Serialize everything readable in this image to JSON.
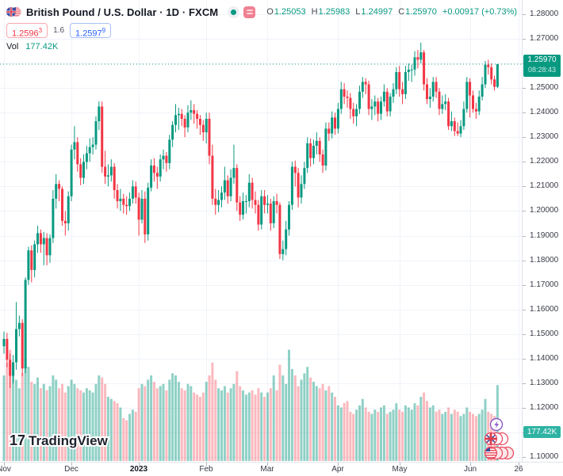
{
  "header": {
    "symbol_title": "British Pound / U.S. Dollar",
    "interval": "1D",
    "exchange": "FXCM",
    "title_full": "British Pound / U.S. Dollar · 1D · FXCM",
    "ohlc": {
      "o_label": "O",
      "o": "1.25053",
      "h_label": "H",
      "h": "1.25983",
      "l_label": "L",
      "l": "1.24997",
      "c_label": "C",
      "c": "1.25970",
      "change": "+0.00917 (+0.73%)"
    },
    "bid_main": "1.2596",
    "bid_sup": "3",
    "spread": "1.6",
    "ask_main": "1.2597",
    "ask_sup": "9",
    "vol_label": "Vol",
    "vol_value": "177.42K"
  },
  "price_label": {
    "price": "1.25970",
    "countdown": "08:28:43"
  },
  "vol_axis_label": "177.42K",
  "watermark": {
    "mark": "17",
    "logo_text": "TradingView"
  },
  "colors": {
    "up": "#089981",
    "down": "#f23645",
    "vol_up": "rgba(8,153,129,0.45)",
    "vol_down": "rgba(242,54,69,0.35)",
    "grid": "#f0f3fa",
    "axis_text": "#363a45",
    "price_label_bg": "#089981",
    "vol_label_bg": "#2eb3a3",
    "bid": "#f23645",
    "ask": "#2962ff"
  },
  "chart_data": {
    "type": "candlestick",
    "title": "British Pound / U.S. Dollar",
    "interval": "1D",
    "source": "FXCM",
    "current_bar": {
      "open": 1.25053,
      "high": 1.25983,
      "low": 1.24997,
      "close": 1.2597,
      "change": "+0.00917 (+0.73%)"
    },
    "last_price": 1.2597,
    "price_axis": {
      "min": 1.1,
      "max": 1.28,
      "tick_step": 0.01,
      "tick_labels": [
        "1.28000",
        "1.27000",
        "1.26000",
        "1.25000",
        "1.24000",
        "1.23000",
        "1.22000",
        "1.21000",
        "1.20000",
        "1.19000",
        "1.18000",
        "1.17000",
        "1.16000",
        "1.15000",
        "1.14000",
        "1.13000",
        "1.12000",
        "1.11000",
        "1.10000"
      ]
    },
    "time_axis": {
      "ticks": [
        {
          "label": "Nov",
          "index": 0,
          "bold": false
        },
        {
          "label": "Dec",
          "index": 22,
          "bold": false
        },
        {
          "label": "2023",
          "index": 44,
          "bold": true
        },
        {
          "label": "Feb",
          "index": 66,
          "bold": false
        },
        {
          "label": "Mar",
          "index": 86,
          "bold": false
        },
        {
          "label": "Apr",
          "index": 109,
          "bold": false
        },
        {
          "label": "May",
          "index": 129,
          "bold": false
        },
        {
          "label": "Jun",
          "index": 152,
          "bold": false
        },
        {
          "label": "26",
          "index": 168,
          "bold": false
        }
      ]
    },
    "volume": {
      "current_label": "177.42K",
      "values": [
        200,
        230,
        260,
        225,
        190,
        170,
        205,
        240,
        220,
        185,
        180,
        195,
        170,
        180,
        165,
        175,
        200,
        190,
        170,
        180,
        160,
        175,
        190,
        180,
        170,
        165,
        160,
        170,
        165,
        160,
        180,
        200,
        195,
        180,
        150,
        145,
        140,
        135,
        125,
        100,
        95,
        110,
        120,
        115,
        170,
        180,
        175,
        190,
        200,
        185,
        170,
        175,
        180,
        165,
        190,
        205,
        200,
        185,
        170,
        165,
        180,
        175,
        160,
        155,
        150,
        160,
        185,
        200,
        230,
        190,
        170,
        165,
        175,
        160,
        170,
        180,
        210,
        175,
        165,
        155,
        160,
        165,
        155,
        170,
        160,
        150,
        160,
        170,
        200,
        165,
        225,
        200,
        180,
        260,
        215,
        200,
        175,
        190,
        205,
        220,
        195,
        185,
        175,
        170,
        180,
        165,
        175,
        160,
        150,
        130,
        125,
        135,
        140,
        115,
        110,
        120,
        130,
        145,
        125,
        115,
        110,
        120,
        115,
        125,
        130,
        110,
        115,
        120,
        135,
        120,
        115,
        130,
        125,
        120,
        135,
        130,
        150,
        160,
        140,
        125,
        130,
        115,
        120,
        110,
        115,
        125,
        110,
        120,
        115,
        105,
        110,
        125,
        115,
        110,
        105,
        110,
        120,
        145,
        115,
        110,
        105,
        177.42
      ]
    },
    "candles": [
      [
        1.145,
        1.151,
        1.142,
        1.148
      ],
      [
        1.148,
        1.1505,
        1.1365,
        1.1395
      ],
      [
        1.1395,
        1.142,
        1.128,
        1.133
      ],
      [
        1.133,
        1.1415,
        1.13,
        1.1385
      ],
      [
        1.1385,
        1.163,
        1.1355,
        1.152
      ],
      [
        1.152,
        1.1575,
        1.149,
        1.1545
      ],
      [
        1.1545,
        1.156,
        1.133,
        1.136
      ],
      [
        1.136,
        1.173,
        1.134,
        1.172
      ],
      [
        1.172,
        1.1855,
        1.17,
        1.184
      ],
      [
        1.184,
        1.186,
        1.171,
        1.176
      ],
      [
        1.176,
        1.188,
        1.173,
        1.1865
      ],
      [
        1.1865,
        1.194,
        1.183,
        1.191
      ],
      [
        1.191,
        1.1925,
        1.183,
        1.1865
      ],
      [
        1.1865,
        1.1915,
        1.178,
        1.189
      ],
      [
        1.189,
        1.191,
        1.178,
        1.182
      ],
      [
        1.182,
        1.1905,
        1.179,
        1.189
      ],
      [
        1.189,
        1.2085,
        1.187,
        1.205
      ],
      [
        1.205,
        1.215,
        1.201,
        1.211
      ],
      [
        1.211,
        1.2125,
        1.204,
        1.209
      ],
      [
        1.209,
        1.21,
        1.194,
        1.196
      ],
      [
        1.196,
        1.2,
        1.19,
        1.195
      ],
      [
        1.195,
        1.208,
        1.192,
        1.206
      ],
      [
        1.206,
        1.227,
        1.204,
        1.225
      ],
      [
        1.225,
        1.2345,
        1.221,
        1.228
      ],
      [
        1.228,
        1.23,
        1.216,
        1.219
      ],
      [
        1.219,
        1.2215,
        1.2105,
        1.2135
      ],
      [
        1.2135,
        1.223,
        1.211,
        1.22
      ],
      [
        1.22,
        1.2265,
        1.217,
        1.2235
      ],
      [
        1.2235,
        1.2295,
        1.22,
        1.226
      ],
      [
        1.226,
        1.23,
        1.223,
        1.227
      ],
      [
        1.227,
        1.2385,
        1.225,
        1.2365
      ],
      [
        1.2365,
        1.2446,
        1.233,
        1.2425
      ],
      [
        1.2425,
        1.2445,
        1.2155,
        1.218
      ],
      [
        1.218,
        1.2245,
        1.211,
        1.214
      ],
      [
        1.214,
        1.219,
        1.21,
        1.2145
      ],
      [
        1.2145,
        1.221,
        1.212,
        1.218
      ],
      [
        1.218,
        1.2195,
        1.205,
        1.2085
      ],
      [
        1.2085,
        1.211,
        1.201,
        1.204
      ],
      [
        1.204,
        1.209,
        1.2,
        1.205
      ],
      [
        1.205,
        1.207,
        1.199,
        1.2025
      ],
      [
        1.2025,
        1.206,
        1.1985,
        1.202
      ],
      [
        1.202,
        1.2075,
        1.2,
        1.205
      ],
      [
        1.205,
        1.2125,
        1.203,
        1.21
      ],
      [
        1.21,
        1.212,
        1.203,
        1.2055
      ],
      [
        1.2055,
        1.2075,
        1.19,
        1.1965
      ],
      [
        1.1965,
        1.2085,
        1.195,
        1.205
      ],
      [
        1.205,
        1.208,
        1.187,
        1.1905
      ],
      [
        1.1905,
        1.2115,
        1.188,
        1.2095
      ],
      [
        1.2095,
        1.221,
        1.208,
        1.2185
      ],
      [
        1.2185,
        1.2215,
        1.212,
        1.2155
      ],
      [
        1.2155,
        1.218,
        1.209,
        1.214
      ],
      [
        1.214,
        1.223,
        1.212,
        1.221
      ],
      [
        1.221,
        1.225,
        1.217,
        1.2225
      ],
      [
        1.2225,
        1.224,
        1.216,
        1.2195
      ],
      [
        1.2195,
        1.231,
        1.217,
        1.229
      ],
      [
        1.229,
        1.2365,
        1.226,
        1.235
      ],
      [
        1.235,
        1.2435,
        1.232,
        1.239
      ],
      [
        1.239,
        1.242,
        1.233,
        1.2395
      ],
      [
        1.2395,
        1.2415,
        1.2345,
        1.2375
      ],
      [
        1.2375,
        1.239,
        1.23,
        1.234
      ],
      [
        1.234,
        1.243,
        1.232,
        1.24
      ],
      [
        1.24,
        1.245,
        1.237,
        1.241
      ],
      [
        1.241,
        1.2435,
        1.2355,
        1.2395
      ],
      [
        1.2395,
        1.241,
        1.2335,
        1.2375
      ],
      [
        1.2375,
        1.239,
        1.231,
        1.235
      ],
      [
        1.235,
        1.237,
        1.2285,
        1.232
      ],
      [
        1.232,
        1.24,
        1.2275,
        1.2375
      ],
      [
        1.2375,
        1.24,
        1.219,
        1.2225
      ],
      [
        1.2225,
        1.227,
        1.2025,
        1.205
      ],
      [
        1.205,
        1.209,
        1.1985,
        1.2025
      ],
      [
        1.2025,
        1.2085,
        1.1995,
        1.2045
      ],
      [
        1.2045,
        1.21,
        1.2015,
        1.2075
      ],
      [
        1.2075,
        1.218,
        1.2045,
        1.2125
      ],
      [
        1.2125,
        1.2145,
        1.203,
        1.206
      ],
      [
        1.206,
        1.217,
        1.204,
        1.2135
      ],
      [
        1.2135,
        1.227,
        1.211,
        1.2175
      ],
      [
        1.2175,
        1.219,
        1.2,
        1.2035
      ],
      [
        1.2035,
        1.206,
        1.196,
        1.1985
      ],
      [
        1.1985,
        1.2075,
        1.1965,
        1.204
      ],
      [
        1.204,
        1.2065,
        1.199,
        1.204
      ],
      [
        1.204,
        1.215,
        1.2015,
        1.2115
      ],
      [
        1.2115,
        1.2135,
        1.201,
        1.2045
      ],
      [
        1.2045,
        1.208,
        1.199,
        1.2025
      ],
      [
        1.2025,
        1.2045,
        1.192,
        1.1945
      ],
      [
        1.1945,
        1.2085,
        1.1925,
        1.206
      ],
      [
        1.206,
        1.2085,
        1.199,
        1.2025
      ],
      [
        1.2025,
        1.2065,
        1.199,
        1.203
      ],
      [
        1.203,
        1.205,
        1.192,
        1.195
      ],
      [
        1.195,
        1.206,
        1.193,
        1.204
      ],
      [
        1.204,
        1.207,
        1.199,
        1.2025
      ],
      [
        1.2025,
        1.2035,
        1.1805,
        1.1825
      ],
      [
        1.1825,
        1.188,
        1.18,
        1.1845
      ],
      [
        1.1845,
        1.196,
        1.182,
        1.1925
      ],
      [
        1.1925,
        1.204,
        1.19,
        1.2025
      ],
      [
        1.2025,
        1.22,
        1.2005,
        1.218
      ],
      [
        1.218,
        1.2205,
        1.21,
        1.2155
      ],
      [
        1.2155,
        1.2175,
        1.2015,
        1.2055
      ],
      [
        1.2055,
        1.2145,
        1.203,
        1.211
      ],
      [
        1.211,
        1.22,
        1.209,
        1.2175
      ],
      [
        1.2175,
        1.23,
        1.2155,
        1.2275
      ],
      [
        1.2275,
        1.2295,
        1.218,
        1.2215
      ],
      [
        1.2215,
        1.229,
        1.219,
        1.2265
      ],
      [
        1.2265,
        1.232,
        1.223,
        1.2285
      ],
      [
        1.2285,
        1.23,
        1.22,
        1.223
      ],
      [
        1.223,
        1.225,
        1.2155,
        1.2185
      ],
      [
        1.2185,
        1.236,
        1.2165,
        1.2335
      ],
      [
        1.2335,
        1.236,
        1.2285,
        1.2315
      ],
      [
        1.2315,
        1.2405,
        1.2295,
        1.238
      ],
      [
        1.238,
        1.24,
        1.231,
        1.2335
      ],
      [
        1.2335,
        1.244,
        1.2315,
        1.2415
      ],
      [
        1.2415,
        1.2525,
        1.2395,
        1.2495
      ],
      [
        1.2495,
        1.252,
        1.2435,
        1.2465
      ],
      [
        1.2465,
        1.249,
        1.242,
        1.246
      ],
      [
        1.246,
        1.248,
        1.2375,
        1.2415
      ],
      [
        1.2415,
        1.244,
        1.2355,
        1.2385
      ],
      [
        1.2385,
        1.2435,
        1.2345,
        1.2415
      ],
      [
        1.2415,
        1.251,
        1.2395,
        1.2485
      ],
      [
        1.2485,
        1.2545,
        1.246,
        1.2525
      ],
      [
        1.2525,
        1.254,
        1.2475,
        1.2515
      ],
      [
        1.2515,
        1.253,
        1.239,
        1.2415
      ],
      [
        1.2415,
        1.2455,
        1.237,
        1.2425
      ],
      [
        1.2425,
        1.247,
        1.239,
        1.2445
      ],
      [
        1.2445,
        1.246,
        1.2365,
        1.2395
      ],
      [
        1.2395,
        1.2465,
        1.237,
        1.2445
      ],
      [
        1.2445,
        1.2515,
        1.2425,
        1.2485
      ],
      [
        1.2485,
        1.25,
        1.2385,
        1.2405
      ],
      [
        1.2405,
        1.248,
        1.2385,
        1.2465
      ],
      [
        1.2465,
        1.252,
        1.244,
        1.2495
      ],
      [
        1.2495,
        1.2585,
        1.2475,
        1.2565
      ],
      [
        1.2565,
        1.259,
        1.2465,
        1.2495
      ],
      [
        1.2495,
        1.2525,
        1.2435,
        1.2475
      ],
      [
        1.2475,
        1.259,
        1.2455,
        1.2565
      ],
      [
        1.2565,
        1.26,
        1.253,
        1.2575
      ],
      [
        1.2575,
        1.2595,
        1.2525,
        1.2575
      ],
      [
        1.2575,
        1.265,
        1.255,
        1.2625
      ],
      [
        1.2625,
        1.2655,
        1.258,
        1.2615
      ],
      [
        1.2615,
        1.2685,
        1.26,
        1.2645
      ],
      [
        1.2645,
        1.2655,
        1.249,
        1.2515
      ],
      [
        1.2515,
        1.254,
        1.2435,
        1.2455
      ],
      [
        1.2455,
        1.25,
        1.242,
        1.2465
      ],
      [
        1.2465,
        1.2545,
        1.2445,
        1.2525
      ],
      [
        1.2525,
        1.2545,
        1.246,
        1.2485
      ],
      [
        1.2485,
        1.25,
        1.239,
        1.2415
      ],
      [
        1.2415,
        1.247,
        1.2395,
        1.2435
      ],
      [
        1.2435,
        1.2475,
        1.241,
        1.2445
      ],
      [
        1.2445,
        1.246,
        1.233,
        1.2345
      ],
      [
        1.2345,
        1.2405,
        1.2325,
        1.2365
      ],
      [
        1.2365,
        1.238,
        1.2305,
        1.2325
      ],
      [
        1.2325,
        1.236,
        1.2305,
        1.2315
      ],
      [
        1.2315,
        1.237,
        1.23,
        1.2345
      ],
      [
        1.2345,
        1.2445,
        1.233,
        1.2415
      ],
      [
        1.2415,
        1.2545,
        1.24,
        1.2525
      ],
      [
        1.2525,
        1.254,
        1.238,
        1.247
      ],
      [
        1.247,
        1.249,
        1.24,
        1.2415
      ],
      [
        1.2415,
        1.244,
        1.2375,
        1.2405
      ],
      [
        1.2405,
        1.249,
        1.239,
        1.2465
      ],
      [
        1.2465,
        1.2545,
        1.245,
        1.2515
      ],
      [
        1.2515,
        1.261,
        1.25,
        1.2595
      ],
      [
        1.2595,
        1.2615,
        1.2555,
        1.2585
      ],
      [
        1.2585,
        1.26,
        1.2515,
        1.2535
      ],
      [
        1.2535,
        1.255,
        1.249,
        1.2505
      ],
      [
        1.2505,
        1.2598,
        1.25,
        1.2597
      ]
    ]
  }
}
